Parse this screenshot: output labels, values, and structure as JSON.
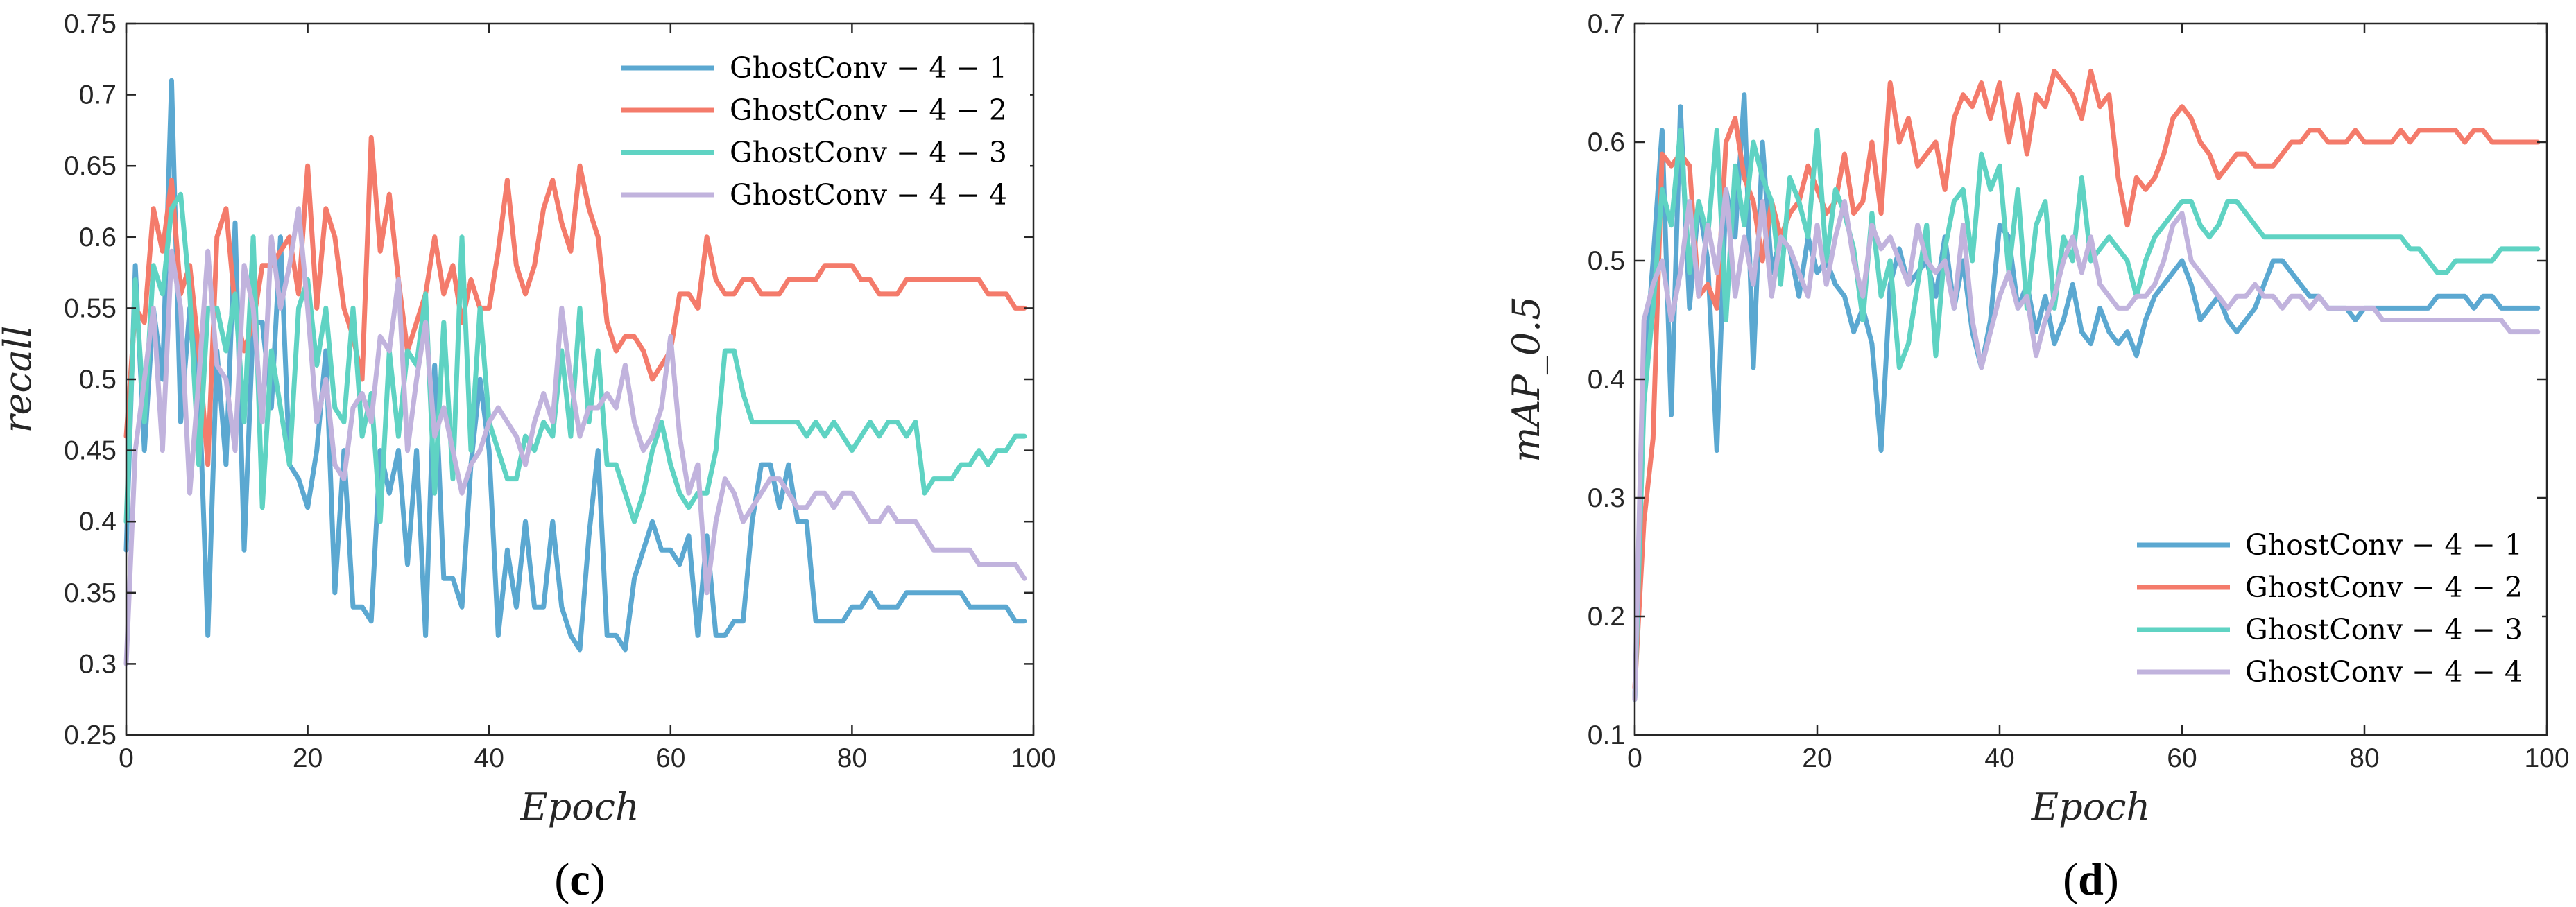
{
  "chart_data": [
    {
      "id": "c",
      "type": "line",
      "caption": "(c)",
      "xlabel": "Epoch",
      "ylabel": "recall",
      "xlim": [
        0,
        100
      ],
      "ylim": [
        0.25,
        0.75
      ],
      "xticks": [
        "0",
        "20",
        "40",
        "60",
        "80",
        "100"
      ],
      "yticks": [
        "0.25",
        "0.3",
        "0.35",
        "0.4",
        "0.45",
        "0.5",
        "0.55",
        "0.6",
        "0.65",
        "0.7",
        "0.75"
      ],
      "grid": false,
      "legend_position": "top-right",
      "x": [
        0,
        1,
        2,
        3,
        4,
        5,
        6,
        7,
        8,
        9,
        10,
        11,
        12,
        13,
        14,
        15,
        16,
        17,
        18,
        19,
        20,
        21,
        22,
        23,
        24,
        25,
        26,
        27,
        28,
        29,
        30,
        31,
        32,
        33,
        34,
        35,
        36,
        37,
        38,
        39,
        40,
        41,
        42,
        43,
        44,
        45,
        46,
        47,
        48,
        49,
        50,
        51,
        52,
        53,
        54,
        55,
        56,
        57,
        58,
        59,
        60,
        61,
        62,
        63,
        64,
        65,
        66,
        67,
        68,
        69,
        70,
        71,
        72,
        73,
        74,
        75,
        76,
        77,
        78,
        79,
        80,
        81,
        82,
        83,
        84,
        85,
        86,
        87,
        88,
        89,
        90,
        91,
        92,
        93,
        94,
        95,
        96,
        97,
        98,
        99
      ],
      "series": [
        {
          "name": "GhostConv − 4 − 1",
          "color": "#5BA8D1",
          "values": [
            0.38,
            0.58,
            0.45,
            0.55,
            0.5,
            0.71,
            0.47,
            0.55,
            0.5,
            0.32,
            0.52,
            0.44,
            0.61,
            0.38,
            0.54,
            0.54,
            0.48,
            0.6,
            0.44,
            0.43,
            0.41,
            0.45,
            0.52,
            0.35,
            0.45,
            0.34,
            0.34,
            0.33,
            0.45,
            0.42,
            0.45,
            0.37,
            0.45,
            0.32,
            0.51,
            0.36,
            0.36,
            0.34,
            0.44,
            0.5,
            0.45,
            0.32,
            0.38,
            0.34,
            0.4,
            0.34,
            0.34,
            0.4,
            0.34,
            0.32,
            0.31,
            0.39,
            0.45,
            0.32,
            0.32,
            0.31,
            0.36,
            0.38,
            0.4,
            0.38,
            0.38,
            0.37,
            0.39,
            0.32,
            0.39,
            0.32,
            0.32,
            0.33,
            0.33,
            0.4,
            0.44,
            0.44,
            0.41,
            0.44,
            0.4,
            0.4,
            0.33,
            0.33,
            0.33,
            0.33,
            0.34,
            0.34,
            0.35,
            0.34,
            0.34,
            0.34,
            0.35,
            0.35,
            0.35,
            0.35,
            0.35,
            0.35,
            0.35,
            0.34,
            0.34,
            0.34,
            0.34,
            0.34,
            0.33,
            0.33
          ]
        },
        {
          "name": "GhostConv − 4 − 2",
          "color": "#F47B6B",
          "values": [
            0.46,
            0.55,
            0.54,
            0.62,
            0.59,
            0.64,
            0.56,
            0.58,
            0.52,
            0.44,
            0.6,
            0.62,
            0.55,
            0.52,
            0.54,
            0.58,
            0.58,
            0.59,
            0.6,
            0.56,
            0.65,
            0.55,
            0.62,
            0.6,
            0.55,
            0.53,
            0.5,
            0.67,
            0.59,
            0.63,
            0.57,
            0.52,
            0.54,
            0.56,
            0.6,
            0.56,
            0.58,
            0.54,
            0.57,
            0.55,
            0.55,
            0.59,
            0.64,
            0.58,
            0.56,
            0.58,
            0.62,
            0.64,
            0.61,
            0.59,
            0.65,
            0.62,
            0.6,
            0.54,
            0.52,
            0.53,
            0.53,
            0.52,
            0.5,
            0.51,
            0.52,
            0.56,
            0.56,
            0.55,
            0.6,
            0.57,
            0.56,
            0.56,
            0.57,
            0.57,
            0.56,
            0.56,
            0.56,
            0.57,
            0.57,
            0.57,
            0.57,
            0.58,
            0.58,
            0.58,
            0.58,
            0.57,
            0.57,
            0.56,
            0.56,
            0.56,
            0.57,
            0.57,
            0.57,
            0.57,
            0.57,
            0.57,
            0.57,
            0.57,
            0.57,
            0.56,
            0.56,
            0.56,
            0.55,
            0.55
          ]
        },
        {
          "name": "GhostConv − 4 − 3",
          "color": "#5FD3C3",
          "values": [
            0.4,
            0.57,
            0.47,
            0.58,
            0.56,
            0.62,
            0.63,
            0.56,
            0.44,
            0.55,
            0.55,
            0.52,
            0.56,
            0.47,
            0.6,
            0.41,
            0.52,
            0.48,
            0.44,
            0.55,
            0.57,
            0.51,
            0.55,
            0.48,
            0.47,
            0.55,
            0.46,
            0.49,
            0.4,
            0.52,
            0.46,
            0.52,
            0.51,
            0.56,
            0.42,
            0.54,
            0.43,
            0.6,
            0.45,
            0.55,
            0.47,
            0.45,
            0.43,
            0.43,
            0.46,
            0.45,
            0.47,
            0.46,
            0.52,
            0.46,
            0.55,
            0.47,
            0.52,
            0.44,
            0.44,
            0.42,
            0.4,
            0.42,
            0.45,
            0.47,
            0.44,
            0.42,
            0.41,
            0.42,
            0.42,
            0.45,
            0.52,
            0.52,
            0.49,
            0.47,
            0.47,
            0.47,
            0.47,
            0.47,
            0.47,
            0.46,
            0.47,
            0.46,
            0.47,
            0.46,
            0.45,
            0.46,
            0.47,
            0.46,
            0.47,
            0.47,
            0.46,
            0.47,
            0.42,
            0.43,
            0.43,
            0.43,
            0.44,
            0.44,
            0.45,
            0.44,
            0.45,
            0.45,
            0.46,
            0.46
          ]
        },
        {
          "name": "GhostConv − 4 − 4",
          "color": "#C1B3DD",
          "values": [
            0.3,
            0.45,
            0.5,
            0.55,
            0.45,
            0.59,
            0.55,
            0.42,
            0.5,
            0.59,
            0.51,
            0.5,
            0.45,
            0.58,
            0.55,
            0.47,
            0.6,
            0.55,
            0.58,
            0.62,
            0.55,
            0.47,
            0.5,
            0.44,
            0.43,
            0.48,
            0.49,
            0.47,
            0.53,
            0.52,
            0.57,
            0.45,
            0.5,
            0.54,
            0.46,
            0.48,
            0.45,
            0.42,
            0.44,
            0.45,
            0.47,
            0.48,
            0.47,
            0.46,
            0.44,
            0.47,
            0.49,
            0.47,
            0.55,
            0.5,
            0.46,
            0.48,
            0.48,
            0.49,
            0.48,
            0.51,
            0.47,
            0.45,
            0.46,
            0.48,
            0.53,
            0.46,
            0.42,
            0.44,
            0.35,
            0.4,
            0.43,
            0.42,
            0.4,
            0.41,
            0.42,
            0.43,
            0.43,
            0.42,
            0.41,
            0.41,
            0.42,
            0.42,
            0.41,
            0.42,
            0.42,
            0.41,
            0.4,
            0.4,
            0.41,
            0.4,
            0.4,
            0.4,
            0.39,
            0.38,
            0.38,
            0.38,
            0.38,
            0.38,
            0.37,
            0.37,
            0.37,
            0.37,
            0.37,
            0.36
          ]
        }
      ]
    },
    {
      "id": "d",
      "type": "line",
      "caption": "(d)",
      "xlabel": "Epoch",
      "ylabel": "mAP_0.5",
      "xlim": [
        0,
        100
      ],
      "ylim": [
        0.1,
        0.7
      ],
      "xticks": [
        "0",
        "20",
        "40",
        "60",
        "80",
        "100"
      ],
      "yticks": [
        "0.1",
        "0.2",
        "0.3",
        "0.4",
        "0.5",
        "0.6",
        "0.7"
      ],
      "grid": false,
      "legend_position": "bottom-right",
      "x": [
        0,
        1,
        2,
        3,
        4,
        5,
        6,
        7,
        8,
        9,
        10,
        11,
        12,
        13,
        14,
        15,
        16,
        17,
        18,
        19,
        20,
        21,
        22,
        23,
        24,
        25,
        26,
        27,
        28,
        29,
        30,
        31,
        32,
        33,
        34,
        35,
        36,
        37,
        38,
        39,
        40,
        41,
        42,
        43,
        44,
        45,
        46,
        47,
        48,
        49,
        50,
        51,
        52,
        53,
        54,
        55,
        56,
        57,
        58,
        59,
        60,
        61,
        62,
        63,
        64,
        65,
        66,
        67,
        68,
        69,
        70,
        71,
        72,
        73,
        74,
        75,
        76,
        77,
        78,
        79,
        80,
        81,
        82,
        83,
        84,
        85,
        86,
        87,
        88,
        89,
        90,
        91,
        92,
        93,
        94,
        95,
        96,
        97,
        98,
        99
      ],
      "series": [
        {
          "name": "GhostConv − 4 − 1",
          "color": "#5BA8D1",
          "values": [
            0.13,
            0.4,
            0.5,
            0.61,
            0.37,
            0.63,
            0.46,
            0.55,
            0.5,
            0.34,
            0.56,
            0.52,
            0.64,
            0.41,
            0.6,
            0.49,
            0.52,
            0.51,
            0.47,
            0.52,
            0.49,
            0.5,
            0.48,
            0.47,
            0.44,
            0.46,
            0.43,
            0.34,
            0.48,
            0.51,
            0.48,
            0.49,
            0.5,
            0.47,
            0.52,
            0.46,
            0.5,
            0.44,
            0.41,
            0.45,
            0.53,
            0.52,
            0.46,
            0.48,
            0.44,
            0.47,
            0.43,
            0.45,
            0.48,
            0.44,
            0.43,
            0.46,
            0.44,
            0.43,
            0.44,
            0.42,
            0.45,
            0.47,
            0.48,
            0.49,
            0.5,
            0.48,
            0.45,
            0.46,
            0.47,
            0.45,
            0.44,
            0.45,
            0.46,
            0.48,
            0.5,
            0.5,
            0.49,
            0.48,
            0.47,
            0.47,
            0.46,
            0.46,
            0.46,
            0.45,
            0.46,
            0.46,
            0.46,
            0.46,
            0.46,
            0.46,
            0.46,
            0.46,
            0.47,
            0.47,
            0.47,
            0.47,
            0.46,
            0.47,
            0.47,
            0.46,
            0.46,
            0.46,
            0.46,
            0.46
          ]
        },
        {
          "name": "GhostConv − 4 − 2",
          "color": "#F47B6B",
          "values": [
            0.14,
            0.28,
            0.35,
            0.59,
            0.58,
            0.59,
            0.58,
            0.47,
            0.48,
            0.46,
            0.6,
            0.62,
            0.57,
            0.55,
            0.5,
            0.55,
            0.52,
            0.54,
            0.55,
            0.58,
            0.56,
            0.54,
            0.55,
            0.59,
            0.54,
            0.55,
            0.6,
            0.54,
            0.65,
            0.6,
            0.62,
            0.58,
            0.59,
            0.6,
            0.56,
            0.62,
            0.64,
            0.63,
            0.65,
            0.62,
            0.65,
            0.6,
            0.64,
            0.59,
            0.64,
            0.63,
            0.66,
            0.65,
            0.64,
            0.62,
            0.66,
            0.63,
            0.64,
            0.57,
            0.53,
            0.57,
            0.56,
            0.57,
            0.59,
            0.62,
            0.63,
            0.62,
            0.6,
            0.59,
            0.57,
            0.58,
            0.59,
            0.59,
            0.58,
            0.58,
            0.58,
            0.59,
            0.6,
            0.6,
            0.61,
            0.61,
            0.6,
            0.6,
            0.6,
            0.61,
            0.6,
            0.6,
            0.6,
            0.6,
            0.61,
            0.6,
            0.61,
            0.61,
            0.61,
            0.61,
            0.61,
            0.6,
            0.61,
            0.61,
            0.6,
            0.6,
            0.6,
            0.6,
            0.6,
            0.6
          ]
        },
        {
          "name": "GhostConv − 4 − 3",
          "color": "#5FD3C3",
          "values": [
            0.13,
            0.38,
            0.46,
            0.56,
            0.53,
            0.61,
            0.49,
            0.55,
            0.52,
            0.61,
            0.45,
            0.58,
            0.53,
            0.6,
            0.57,
            0.55,
            0.48,
            0.57,
            0.55,
            0.52,
            0.61,
            0.5,
            0.56,
            0.54,
            0.51,
            0.45,
            0.54,
            0.47,
            0.5,
            0.41,
            0.43,
            0.48,
            0.53,
            0.42,
            0.51,
            0.55,
            0.56,
            0.5,
            0.59,
            0.56,
            0.58,
            0.49,
            0.56,
            0.46,
            0.53,
            0.55,
            0.46,
            0.52,
            0.5,
            0.57,
            0.5,
            0.51,
            0.52,
            0.51,
            0.5,
            0.47,
            0.5,
            0.52,
            0.53,
            0.54,
            0.55,
            0.55,
            0.53,
            0.52,
            0.53,
            0.55,
            0.55,
            0.54,
            0.53,
            0.52,
            0.52,
            0.52,
            0.52,
            0.52,
            0.52,
            0.52,
            0.52,
            0.52,
            0.52,
            0.52,
            0.52,
            0.52,
            0.52,
            0.52,
            0.52,
            0.51,
            0.51,
            0.5,
            0.49,
            0.49,
            0.5,
            0.5,
            0.5,
            0.5,
            0.5,
            0.51,
            0.51,
            0.51,
            0.51,
            0.51
          ]
        },
        {
          "name": "GhostConv − 4 − 4",
          "color": "#C1B3DD",
          "values": [
            0.13,
            0.45,
            0.48,
            0.5,
            0.45,
            0.49,
            0.55,
            0.47,
            0.53,
            0.49,
            0.56,
            0.47,
            0.52,
            0.48,
            0.55,
            0.47,
            0.52,
            0.51,
            0.49,
            0.47,
            0.53,
            0.48,
            0.52,
            0.55,
            0.5,
            0.47,
            0.53,
            0.51,
            0.52,
            0.5,
            0.48,
            0.53,
            0.5,
            0.49,
            0.5,
            0.46,
            0.53,
            0.45,
            0.41,
            0.44,
            0.47,
            0.49,
            0.46,
            0.47,
            0.42,
            0.45,
            0.47,
            0.5,
            0.52,
            0.49,
            0.52,
            0.48,
            0.47,
            0.46,
            0.46,
            0.47,
            0.47,
            0.48,
            0.5,
            0.53,
            0.54,
            0.5,
            0.49,
            0.48,
            0.47,
            0.46,
            0.47,
            0.47,
            0.48,
            0.47,
            0.47,
            0.46,
            0.47,
            0.47,
            0.46,
            0.47,
            0.46,
            0.46,
            0.46,
            0.46,
            0.46,
            0.46,
            0.45,
            0.45,
            0.45,
            0.45,
            0.45,
            0.45,
            0.45,
            0.45,
            0.45,
            0.45,
            0.45,
            0.45,
            0.45,
            0.45,
            0.44,
            0.44,
            0.44,
            0.44
          ]
        }
      ]
    }
  ]
}
